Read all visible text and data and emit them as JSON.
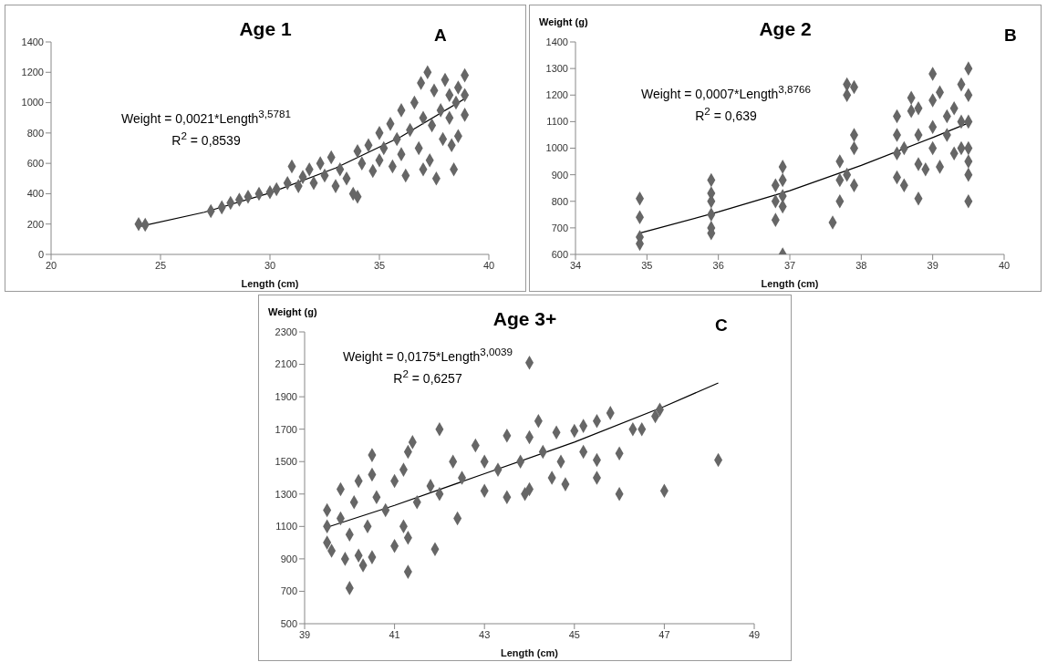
{
  "chart_data": [
    {
      "type": "scatter",
      "title": "Age 1",
      "xlabel": "Length (cm)",
      "annotations": [
        "A",
        "Weight = 0,0021*Length$^{3,5781}$",
        "R$^{2}$ = 0,8539"
      ],
      "xlim": [
        20,
        40
      ],
      "xticks": [
        20,
        25,
        30,
        35,
        40
      ],
      "ylim": [
        0,
        1400
      ],
      "yticks": [
        0,
        200,
        400,
        600,
        800,
        1000,
        1200,
        1400
      ],
      "grid": false,
      "legend": false,
      "marker": "diamond",
      "series": [
        {
          "type": "scatter",
          "color": "#666666",
          "x": [
            24,
            24.3,
            27.3,
            27.8,
            28.2,
            28.6,
            29,
            29.5,
            30,
            30.3,
            30.8,
            31,
            31.3,
            31.5,
            31.8,
            32,
            32.3,
            32.5,
            32.8,
            33,
            33.2,
            33.5,
            33.8,
            34,
            34,
            34.2,
            34.5,
            34.7,
            35,
            35,
            35.2,
            35.5,
            35.6,
            35.8,
            36,
            36,
            36.2,
            36.4,
            36.6,
            36.8,
            36.9,
            37,
            37,
            37.2,
            37.3,
            37.4,
            37.5,
            37.6,
            37.8,
            37.9,
            38,
            38.2,
            38.2,
            38.3,
            38.4,
            38.5,
            38.6,
            38.6,
            38.9,
            38.9,
            38.9
          ],
          "values": [
            200,
            195,
            285,
            310,
            340,
            360,
            380,
            400,
            410,
            430,
            470,
            580,
            450,
            510,
            560,
            470,
            600,
            520,
            640,
            450,
            560,
            500,
            400,
            680,
            380,
            600,
            720,
            550,
            800,
            620,
            700,
            860,
            580,
            760,
            950,
            660,
            520,
            820,
            1000,
            700,
            1130,
            900,
            560,
            1200,
            620,
            850,
            1080,
            500,
            950,
            760,
            1150,
            1050,
            900,
            720,
            560,
            1000,
            1100,
            780,
            1180,
            1050,
            920
          ]
        },
        {
          "type": "line",
          "color": "#000000",
          "marker": "none",
          "x": [
            24,
            27,
            30,
            33,
            36,
            39
          ],
          "values": [
            182,
            278,
            405,
            569,
            777,
            1035
          ]
        }
      ]
    },
    {
      "type": "scatter",
      "title": "Age 2",
      "xlabel": "Length (cm)",
      "ylabel": "Weight (g)",
      "annotations": [
        "B",
        "Weight = 0,0007*Length$^{3,8766}$",
        "R$^{2}$ = 0,639"
      ],
      "xlim": [
        34,
        40
      ],
      "xticks": [
        34,
        35,
        36,
        37,
        38,
        39,
        40
      ],
      "ylim": [
        600,
        1400
      ],
      "yticks": [
        600,
        700,
        800,
        900,
        1000,
        1100,
        1200,
        1300,
        1400
      ],
      "grid": false,
      "legend": false,
      "marker": "diamond",
      "series": [
        {
          "type": "scatter",
          "color": "#666666",
          "x": [
            34.9,
            34.9,
            34.9,
            34.9,
            35.9,
            35.9,
            35.9,
            35.9,
            35.9,
            35.9,
            36.8,
            36.8,
            36.8,
            36.9,
            36.9,
            36.9,
            36.9,
            36.9,
            37.6,
            37.7,
            37.7,
            37.7,
            37.8,
            37.8,
            37.8,
            37.9,
            37.9,
            37.9,
            37.9,
            38.5,
            38.5,
            38.5,
            38.5,
            38.6,
            38.6,
            38.7,
            38.7,
            38.8,
            38.8,
            38.8,
            38.8,
            38.9,
            39,
            39,
            39,
            39,
            39.1,
            39.1,
            39.2,
            39.2,
            39.3,
            39.3,
            39.4,
            39.4,
            39.4,
            39.5,
            39.5,
            39.5,
            39.5,
            39.5,
            39.5,
            39.5
          ],
          "values": [
            810,
            740,
            665,
            640,
            880,
            830,
            800,
            750,
            700,
            680,
            730,
            860,
            800,
            930,
            880,
            820,
            780,
            600,
            720,
            950,
            880,
            800,
            1240,
            1200,
            900,
            1230,
            1050,
            1000,
            860,
            1120,
            1050,
            980,
            890,
            1000,
            860,
            1190,
            1140,
            1150,
            1050,
            940,
            810,
            920,
            1280,
            1180,
            1080,
            1000,
            1210,
            930,
            1120,
            1050,
            1150,
            980,
            1240,
            1100,
            1000,
            1300,
            1200,
            1100,
            1000,
            950,
            900,
            800
          ]
        },
        {
          "type": "line",
          "color": "#000000",
          "marker": "none",
          "x": [
            34.9,
            36,
            37,
            38,
            39,
            39.5
          ],
          "values": [
            680,
            760,
            840,
            935,
            1040,
            1095
          ]
        }
      ]
    },
    {
      "type": "scatter",
      "title": "Age 3+",
      "xlabel": "Length (cm)",
      "ylabel": "Weight (g)",
      "annotations": [
        "C",
        "Weight = 0,0175*Length$^{3,0039}$",
        "R$^{2}$ = 0,6257"
      ],
      "xlim": [
        39,
        49
      ],
      "xticks": [
        39,
        41,
        43,
        45,
        47,
        49
      ],
      "ylim": [
        500,
        2300
      ],
      "yticks": [
        500,
        700,
        900,
        1100,
        1300,
        1500,
        1700,
        1900,
        2100,
        2300
      ],
      "grid": false,
      "legend": false,
      "marker": "diamond",
      "series": [
        {
          "type": "scatter",
          "color": "#666666",
          "x": [
            39.5,
            39.5,
            39.5,
            39.6,
            39.8,
            39.8,
            39.9,
            40,
            40,
            40.1,
            40.2,
            40.2,
            40.3,
            40.4,
            40.5,
            40.5,
            40.5,
            40.6,
            40.8,
            41,
            41,
            41.2,
            41.2,
            41.3,
            41.3,
            41.3,
            41.4,
            41.5,
            41.8,
            41.9,
            42,
            42,
            42.3,
            42.4,
            42.5,
            42.8,
            43,
            43,
            43.3,
            43.5,
            43.5,
            43.8,
            43.9,
            44,
            44,
            44,
            44.2,
            44.3,
            44.5,
            44.6,
            44.7,
            44.8,
            45,
            45.2,
            45.2,
            45.5,
            45.5,
            45.5,
            45.8,
            46,
            46,
            46.3,
            46.5,
            46.8,
            46.9,
            47,
            48.2
          ],
          "values": [
            1200,
            1100,
            1000,
            950,
            1330,
            1150,
            900,
            720,
            1050,
            1250,
            1380,
            920,
            860,
            1100,
            1540,
            1420,
            910,
            1280,
            1200,
            1380,
            980,
            1450,
            1100,
            1560,
            820,
            1030,
            1620,
            1250,
            1350,
            960,
            1700,
            1300,
            1500,
            1150,
            1400,
            1600,
            1500,
            1320,
            1450,
            1660,
            1280,
            1500,
            1300,
            2110,
            1650,
            1330,
            1750,
            1560,
            1400,
            1680,
            1500,
            1360,
            1690,
            1720,
            1560,
            1750,
            1510,
            1400,
            1800,
            1550,
            1300,
            1700,
            1700,
            1780,
            1820,
            1320,
            1510
          ]
        },
        {
          "type": "line",
          "color": "#000000",
          "marker": "none",
          "x": [
            39.5,
            41,
            43,
            45,
            47,
            48.2
          ],
          "values": [
            1095,
            1230,
            1425,
            1620,
            1840,
            1985
          ]
        }
      ]
    }
  ]
}
